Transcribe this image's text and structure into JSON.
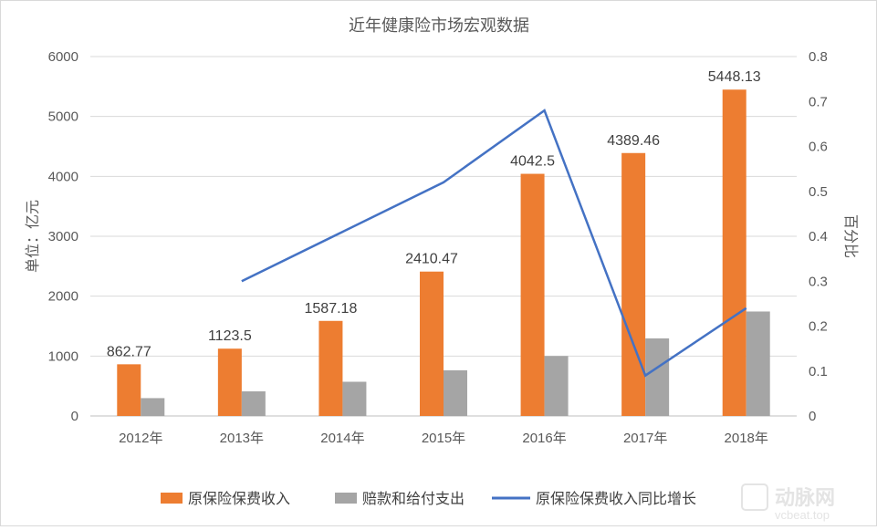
{
  "chart_data": {
    "type": "bar",
    "title": "近年健康险市场宏观数据",
    "categories": [
      "2012年",
      "2013年",
      "2014年",
      "2015年",
      "2016年",
      "2017年",
      "2018年"
    ],
    "ylabel": "单位：亿元",
    "y2label": "百分比",
    "ylim": [
      0,
      6000
    ],
    "y2lim": [
      0,
      0.8
    ],
    "yticks": [
      "0",
      "1000",
      "2000",
      "3000",
      "4000",
      "5000",
      "6000"
    ],
    "y2ticks": [
      "0",
      "0.1",
      "0.2",
      "0.3",
      "0.4",
      "0.5",
      "0.6",
      "0.7",
      "0.8"
    ],
    "grid": true,
    "legend_position": "bottom",
    "series": [
      {
        "name": "原保险保费收入",
        "type": "bar",
        "axis": "left",
        "color": "#ED7D31",
        "values": [
          862.77,
          1123.5,
          1587.18,
          2410.47,
          4042.5,
          4389.46,
          5448.13
        ],
        "labels": [
          "862.77",
          "1123.5",
          "1587.18",
          "2410.47",
          "4042.5",
          "4389.46",
          "5448.13"
        ]
      },
      {
        "name": "赔款和给付支出",
        "type": "bar",
        "axis": "left",
        "color": "#A5A5A5",
        "values": [
          298,
          411,
          571,
          763,
          1001,
          1295,
          1744
        ]
      },
      {
        "name": "原保险保费收入同比增长",
        "type": "line",
        "axis": "right",
        "color": "#4472C4",
        "values": [
          null,
          0.3,
          0.41,
          0.52,
          0.68,
          0.09,
          0.24
        ]
      }
    ]
  },
  "watermark": {
    "brand": "动脉网",
    "domain": "vcbeat.top"
  }
}
